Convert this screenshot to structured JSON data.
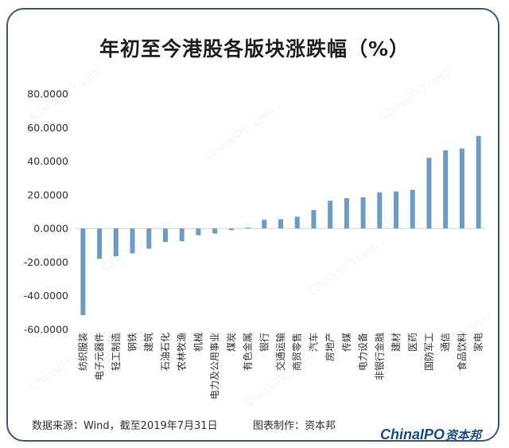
{
  "title": "年初至今港股各版块涨跌幅（%）",
  "footer": {
    "source": "数据来源：Wind，截至2019年7月31日",
    "maker": "图表制作：资本邦"
  },
  "logo": {
    "latin": "ChinaIPO",
    "cn": "资本邦"
  },
  "watermark": "ChinaIPO.com",
  "colors": {
    "bar": "#6d9bc8",
    "axis": "#d0d0d0",
    "border": "#3a5a7a"
  },
  "chart_data": {
    "type": "bar",
    "title": "年初至今港股各版块涨跌幅（%）",
    "xlabel": "",
    "ylabel": "",
    "ylim": [
      -60,
      80
    ],
    "yticks": [
      80,
      60,
      40,
      20,
      0,
      -20,
      -40,
      -60
    ],
    "ytick_labels": [
      "80.0000",
      "60.0000",
      "40.0000",
      "20.0000",
      "0.0000",
      "-20.0000",
      "-40.0000",
      "-60.0000"
    ],
    "grid": false,
    "categories": [
      "纺织服装",
      "电子元器件",
      "轻工制造",
      "钢铁",
      "建筑",
      "石油石化",
      "农林牧渔",
      "机械",
      "电力及公用事业",
      "煤炭",
      "有色金属",
      "银行",
      "交通运输",
      "商贸零售",
      "汽车",
      "房地产",
      "传媒",
      "电力设备",
      "非银行金融",
      "建材",
      "医药",
      "国防军工",
      "通信",
      "食品饮料",
      "家电"
    ],
    "values": [
      -51.5,
      -18.0,
      -16.5,
      -14.8,
      -12.0,
      -8.0,
      -7.5,
      -4.0,
      -3.0,
      -1.0,
      0.5,
      5.2,
      5.5,
      7.0,
      11.0,
      16.5,
      18.0,
      18.5,
      21.5,
      22.0,
      23.0,
      42.0,
      46.5,
      47.5,
      55.0
    ]
  }
}
